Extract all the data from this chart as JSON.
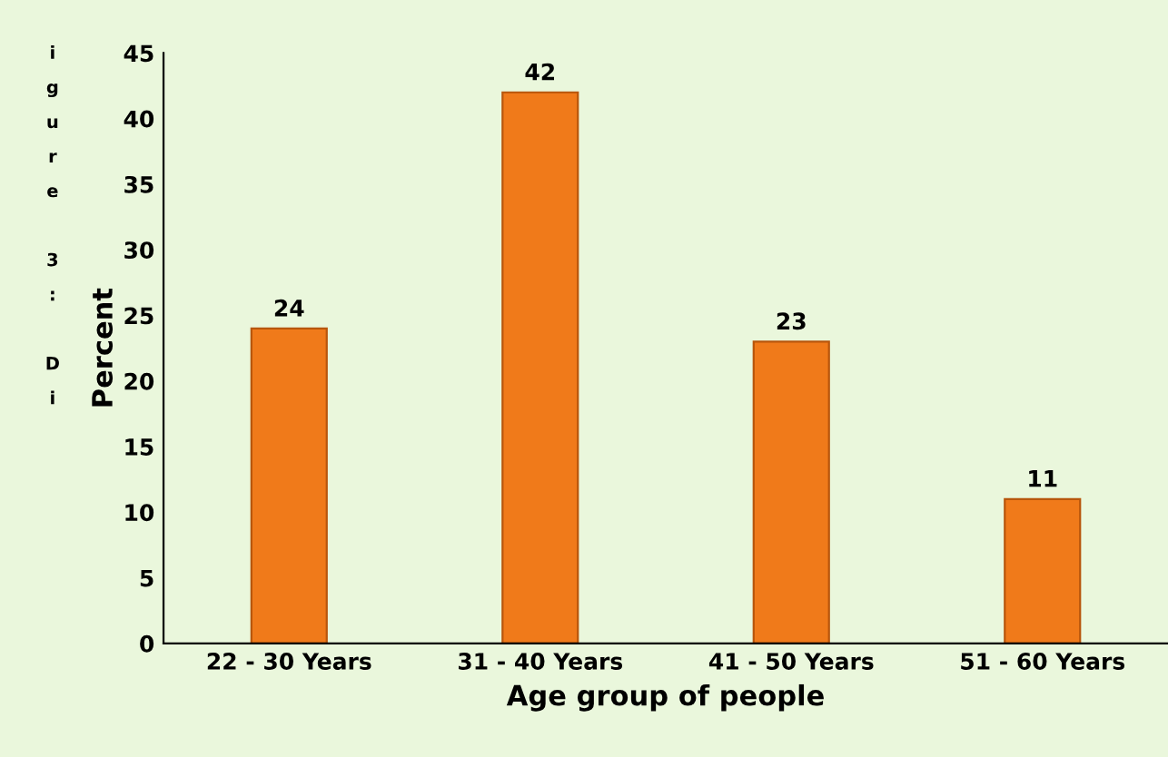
{
  "chart_data": {
    "type": "bar",
    "xlabel": "Age group of people",
    "ylabel": "Percent",
    "categories": [
      "22 - 30 Years",
      "31 - 40 Years",
      "41 - 50 Years",
      "51 - 60 Years"
    ],
    "values": [
      24,
      42,
      23,
      11
    ],
    "color": "#f07a1a",
    "ylim": [
      0,
      45
    ],
    "yticks": [
      0,
      5,
      10,
      15,
      20,
      25,
      30,
      35,
      40,
      45
    ],
    "grid": false,
    "data_labels": true,
    "annotations": [
      "igure 3: Di"
    ]
  }
}
